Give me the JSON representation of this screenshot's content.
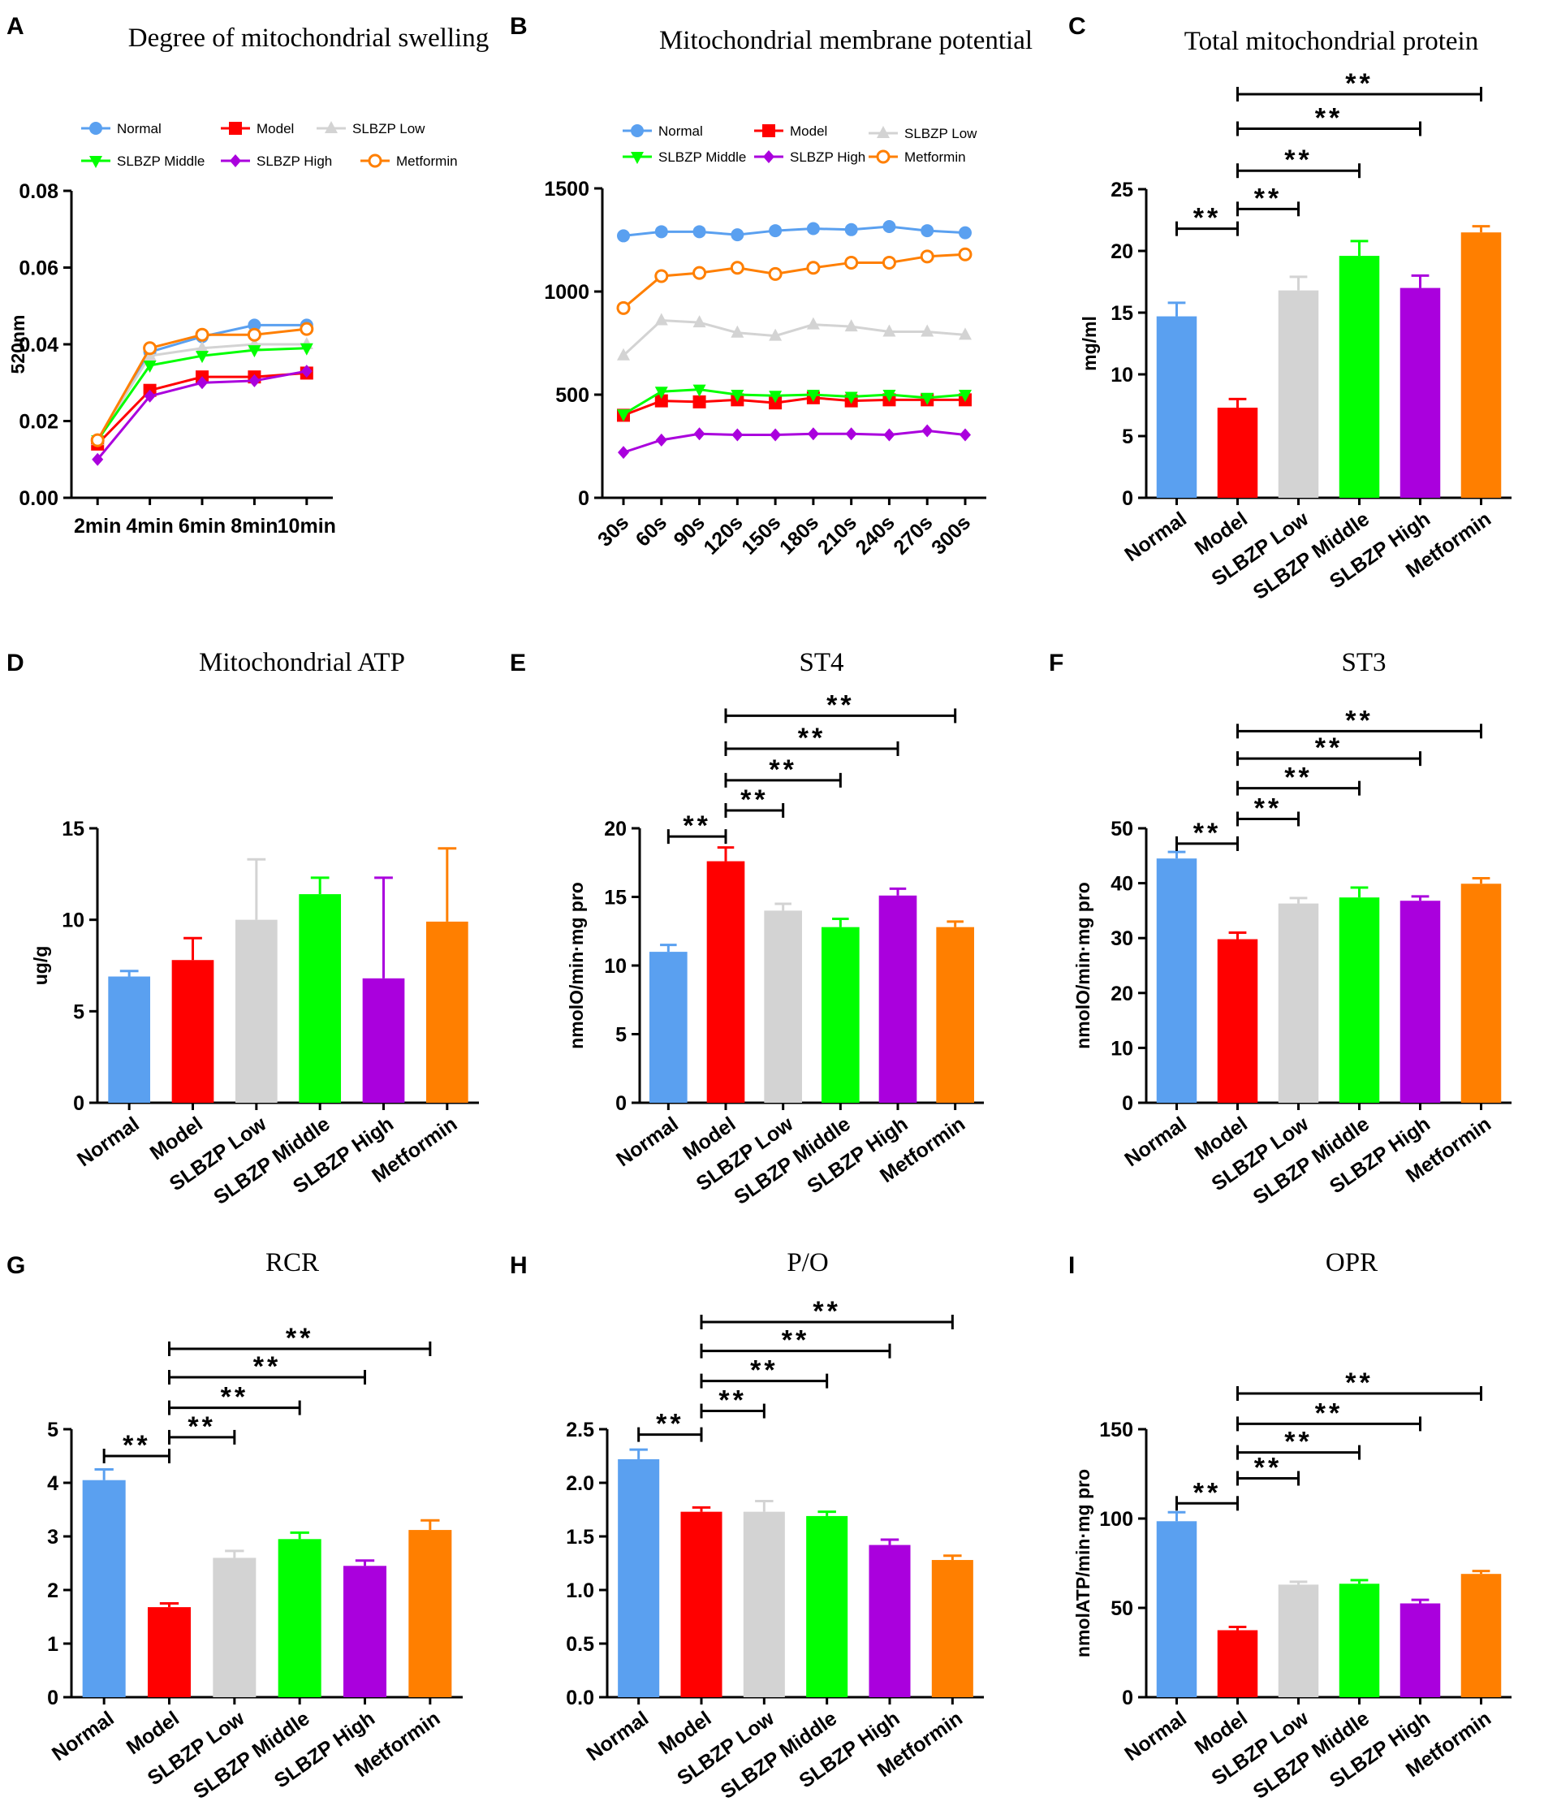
{
  "colors": {
    "Normal": "#5aa0f0",
    "Model": "#ff0000",
    "SLBZP Low": "#d3d3d3",
    "SLBZP Middle": "#00ff00",
    "SLBZP High": "#aa00dd",
    "Metformin": "#ff7f00"
  },
  "chart_data": [
    {
      "id": "A",
      "type": "line",
      "panel": "A",
      "title": "Degree of mitochondrial swelling",
      "ylabel": "520nm",
      "xlabel": "",
      "categories": [
        "2min",
        "4min",
        "6min",
        "8min",
        "10min"
      ],
      "ylim": [
        0,
        0.08
      ],
      "yticks": [
        "0.00",
        "0.02",
        "0.04",
        "0.06",
        "0.08"
      ],
      "legend_location": "top",
      "series": [
        {
          "name": "Normal",
          "marker": "circle",
          "values": [
            0.015,
            0.038,
            0.042,
            0.045,
            0.045
          ]
        },
        {
          "name": "Model",
          "marker": "square",
          "values": [
            0.014,
            0.028,
            0.0315,
            0.0315,
            0.0325
          ]
        },
        {
          "name": "SLBZP Low",
          "marker": "triangle-up",
          "values": [
            0.015,
            0.037,
            0.039,
            0.04,
            0.04
          ]
        },
        {
          "name": "SLBZP Middle",
          "marker": "triangle-down",
          "values": [
            0.015,
            0.0345,
            0.037,
            0.0385,
            0.039
          ]
        },
        {
          "name": "SLBZP High",
          "marker": "diamond",
          "values": [
            0.01,
            0.0265,
            0.03,
            0.0305,
            0.033
          ]
        },
        {
          "name": "Metformin",
          "marker": "open-circle",
          "values": [
            0.015,
            0.039,
            0.0425,
            0.0425,
            0.044
          ]
        }
      ]
    },
    {
      "id": "B",
      "type": "line",
      "panel": "B",
      "title": "Mitochondrial membrane potential",
      "ylabel": "",
      "xlabel": "",
      "categories": [
        "30s",
        "60s",
        "90s",
        "120s",
        "150s",
        "180s",
        "210s",
        "240s",
        "270s",
        "300s"
      ],
      "ylim": [
        0,
        1500
      ],
      "yticks": [
        "0",
        "500",
        "1000",
        "1500"
      ],
      "legend_location": "top",
      "series": [
        {
          "name": "Normal",
          "marker": "circle",
          "values": [
            1270,
            1290,
            1290,
            1275,
            1295,
            1305,
            1300,
            1315,
            1295,
            1285
          ]
        },
        {
          "name": "Model",
          "marker": "square",
          "values": [
            400,
            470,
            465,
            475,
            460,
            485,
            470,
            475,
            475,
            475
          ]
        },
        {
          "name": "SLBZP Low",
          "marker": "triangle-up",
          "values": [
            690,
            860,
            850,
            800,
            785,
            840,
            830,
            805,
            805,
            790
          ]
        },
        {
          "name": "SLBZP Middle",
          "marker": "triangle-down",
          "values": [
            405,
            515,
            525,
            500,
            495,
            500,
            490,
            500,
            485,
            500
          ]
        },
        {
          "name": "SLBZP High",
          "marker": "diamond",
          "values": [
            220,
            280,
            310,
            305,
            305,
            310,
            310,
            305,
            325,
            305
          ]
        },
        {
          "name": "Metformin",
          "marker": "open-circle",
          "values": [
            920,
            1075,
            1090,
            1115,
            1085,
            1115,
            1140,
            1140,
            1170,
            1180
          ]
        }
      ]
    },
    {
      "id": "C",
      "type": "bar",
      "panel": "C",
      "title": "Total mitochondrial protein",
      "ylabel": "mg/ml",
      "categories": [
        "Normal",
        "Model",
        "SLBZP Low",
        "SLBZP Middle",
        "SLBZP High",
        "Metformin"
      ],
      "values": [
        14.7,
        7.3,
        16.8,
        19.6,
        17.0,
        21.5
      ],
      "errors": [
        1.1,
        0.7,
        1.1,
        1.2,
        1.0,
        0.5
      ],
      "ylim": [
        0,
        25
      ],
      "yticks": [
        "0",
        "5",
        "10",
        "15",
        "20",
        "25"
      ],
      "brackets": [
        {
          "from": "Normal",
          "to": "Model",
          "anchor": "Model",
          "y": 21.8,
          "label": "**"
        },
        {
          "from": "Model",
          "to": "SLBZP Low",
          "anchor": "Model",
          "y": 23.4,
          "label": "**"
        },
        {
          "from": "Model",
          "to": "SLBZP Middle",
          "anchor": "Model",
          "y": 26.5,
          "label": "**"
        },
        {
          "from": "Model",
          "to": "SLBZP High",
          "anchor": "Model",
          "y": 29.9,
          "label": "**"
        },
        {
          "from": "Model",
          "to": "Metformin",
          "anchor": "Model",
          "y": 32.7,
          "label": "**"
        }
      ]
    },
    {
      "id": "D",
      "type": "bar",
      "panel": "D",
      "title": "Mitochondrial ATP",
      "ylabel": "ug/g",
      "categories": [
        "Normal",
        "Model",
        "SLBZP Low",
        "SLBZP Middle",
        "SLBZP High",
        "Metformin"
      ],
      "values": [
        6.9,
        7.8,
        10.0,
        11.4,
        6.8,
        9.9
      ],
      "errors": [
        0.3,
        1.2,
        3.3,
        0.9,
        5.5,
        4.0
      ],
      "ylim": [
        0,
        15
      ],
      "yticks": [
        "0",
        "5",
        "10",
        "15"
      ],
      "brackets": []
    },
    {
      "id": "E",
      "type": "bar",
      "panel": "E",
      "title": "ST4",
      "ylabel": "nmolO/min·mg pro",
      "categories": [
        "Normal",
        "Model",
        "SLBZP Low",
        "SLBZP Middle",
        "SLBZP High",
        "Metformin"
      ],
      "values": [
        11.0,
        17.6,
        14.0,
        12.8,
        15.1,
        12.8
      ],
      "errors": [
        0.5,
        1.0,
        0.5,
        0.6,
        0.5,
        0.4
      ],
      "ylim": [
        0,
        20
      ],
      "yticks": [
        "0",
        "5",
        "10",
        "15",
        "20"
      ],
      "brackets": [
        {
          "from": "Normal",
          "to": "Model",
          "anchor": "Model",
          "y": 19.4,
          "label": "**"
        },
        {
          "from": "Model",
          "to": "SLBZP Low",
          "anchor": "Model",
          "y": 21.3,
          "label": "**"
        },
        {
          "from": "Model",
          "to": "SLBZP Middle",
          "anchor": "Model",
          "y": 23.5,
          "label": "**"
        },
        {
          "from": "Model",
          "to": "SLBZP High",
          "anchor": "Model",
          "y": 25.8,
          "label": "**"
        },
        {
          "from": "Model",
          "to": "Metformin",
          "anchor": "Model",
          "y": 28.2,
          "label": "**"
        }
      ]
    },
    {
      "id": "F",
      "type": "bar",
      "panel": "F",
      "title": "ST3",
      "ylabel": "nmolO/min·mg pro",
      "categories": [
        "Normal",
        "Model",
        "SLBZP Low",
        "SLBZP Middle",
        "SLBZP High",
        "Metformin"
      ],
      "values": [
        44.5,
        29.8,
        36.3,
        37.4,
        36.8,
        39.9
      ],
      "errors": [
        1.2,
        1.2,
        1.0,
        1.8,
        0.8,
        1.0
      ],
      "ylim": [
        0,
        50
      ],
      "yticks": [
        "0",
        "10",
        "20",
        "30",
        "40",
        "50"
      ],
      "brackets": [
        {
          "from": "Normal",
          "to": "Model",
          "anchor": "Model",
          "y": 47.2,
          "label": "**"
        },
        {
          "from": "Model",
          "to": "SLBZP Low",
          "anchor": "Model",
          "y": 51.7,
          "label": "**"
        },
        {
          "from": "Model",
          "to": "SLBZP Middle",
          "anchor": "Model",
          "y": 57.3,
          "label": "**"
        },
        {
          "from": "Model",
          "to": "SLBZP High",
          "anchor": "Model",
          "y": 62.7,
          "label": "**"
        },
        {
          "from": "Model",
          "to": "Metformin",
          "anchor": "Model",
          "y": 67.7,
          "label": "**"
        }
      ]
    },
    {
      "id": "G",
      "type": "bar",
      "panel": "G",
      "title": "RCR",
      "ylabel": "",
      "categories": [
        "Normal",
        "Model",
        "SLBZP Low",
        "SLBZP Middle",
        "SLBZP High",
        "Metformin"
      ],
      "values": [
        4.05,
        1.68,
        2.6,
        2.95,
        2.45,
        3.12
      ],
      "errors": [
        0.2,
        0.07,
        0.13,
        0.12,
        0.1,
        0.18
      ],
      "ylim": [
        0,
        5
      ],
      "yticks": [
        "0",
        "1",
        "2",
        "3",
        "4",
        "5"
      ],
      "brackets": [
        {
          "from": "Normal",
          "to": "Model",
          "anchor": "Model",
          "y": 4.5,
          "label": "**"
        },
        {
          "from": "Model",
          "to": "SLBZP Low",
          "anchor": "Model",
          "y": 4.85,
          "label": "**"
        },
        {
          "from": "Model",
          "to": "SLBZP Middle",
          "anchor": "Model",
          "y": 5.4,
          "label": "**"
        },
        {
          "from": "Model",
          "to": "SLBZP High",
          "anchor": "Model",
          "y": 5.97,
          "label": "**"
        },
        {
          "from": "Model",
          "to": "Metformin",
          "anchor": "Model",
          "y": 6.5,
          "label": "**"
        }
      ]
    },
    {
      "id": "H",
      "type": "bar",
      "panel": "H",
      "title": "P/O",
      "ylabel": "",
      "categories": [
        "Normal",
        "Model",
        "SLBZP Low",
        "SLBZP Middle",
        "SLBZP High",
        "Metformin"
      ],
      "values": [
        2.22,
        1.73,
        1.73,
        1.69,
        1.42,
        1.28
      ],
      "errors": [
        0.09,
        0.04,
        0.1,
        0.04,
        0.05,
        0.04
      ],
      "ylim": [
        0,
        2.5
      ],
      "yticks": [
        "0.0",
        "0.5",
        "1.0",
        "1.5",
        "2.0",
        "2.5"
      ],
      "brackets": [
        {
          "from": "Normal",
          "to": "Model",
          "anchor": "Model",
          "y": 2.45,
          "label": "**"
        },
        {
          "from": "Model",
          "to": "SLBZP Low",
          "anchor": "Model",
          "y": 2.67,
          "label": "**"
        },
        {
          "from": "Model",
          "to": "SLBZP Middle",
          "anchor": "Model",
          "y": 2.95,
          "label": "**"
        },
        {
          "from": "Model",
          "to": "SLBZP High",
          "anchor": "Model",
          "y": 3.23,
          "label": "**"
        },
        {
          "from": "Model",
          "to": "Metformin",
          "anchor": "Model",
          "y": 3.5,
          "label": "**"
        }
      ]
    },
    {
      "id": "I",
      "type": "bar",
      "panel": "I",
      "title": "OPR",
      "ylabel": "nmolATP/min·mg pro",
      "categories": [
        "Normal",
        "Model",
        "SLBZP Low",
        "SLBZP Middle",
        "SLBZP High",
        "Metformin"
      ],
      "values": [
        98.5,
        37.5,
        63.0,
        63.5,
        52.5,
        69.0
      ],
      "errors": [
        5.0,
        1.8,
        1.6,
        2.0,
        2.0,
        1.6
      ],
      "ylim": [
        0,
        150
      ],
      "yticks": [
        "0",
        "50",
        "100",
        "150"
      ],
      "brackets": [
        {
          "from": "Normal",
          "to": "Model",
          "anchor": "Model",
          "y": 108.5,
          "label": "**"
        },
        {
          "from": "Model",
          "to": "SLBZP Low",
          "anchor": "Model",
          "y": 122.5,
          "label": "**"
        },
        {
          "from": "Model",
          "to": "SLBZP Middle",
          "anchor": "Model",
          "y": 137,
          "label": "**"
        },
        {
          "from": "Model",
          "to": "SLBZP High",
          "anchor": "Model",
          "y": 153,
          "label": "**"
        },
        {
          "from": "Model",
          "to": "Metformin",
          "anchor": "Model",
          "y": 170,
          "label": "**"
        }
      ]
    }
  ]
}
